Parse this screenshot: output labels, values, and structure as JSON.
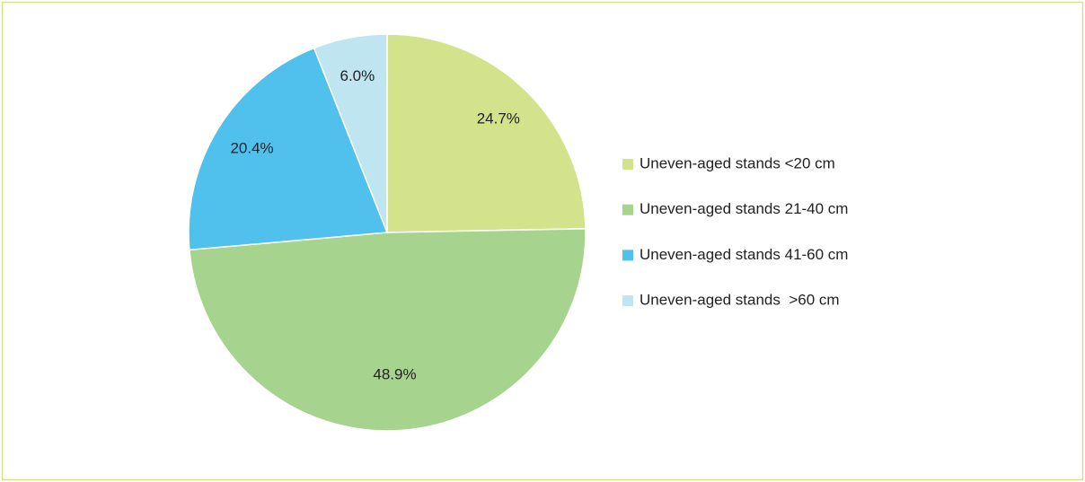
{
  "chart_data": {
    "type": "pie",
    "categories": [
      "Uneven-aged stands <20 cm",
      "Uneven-aged stands 21-40 cm",
      "Uneven-aged stands 41-60 cm",
      "Uneven-aged stands  >60 cm"
    ],
    "values": [
      24.7,
      48.9,
      20.4,
      6.0
    ],
    "value_labels": [
      "24.7%",
      "48.9%",
      "20.4%",
      "6.0%"
    ],
    "colors": [
      "#d3e38b",
      "#a6d48e",
      "#4fc1ec",
      "#bfe5f1"
    ],
    "legend": "right"
  }
}
